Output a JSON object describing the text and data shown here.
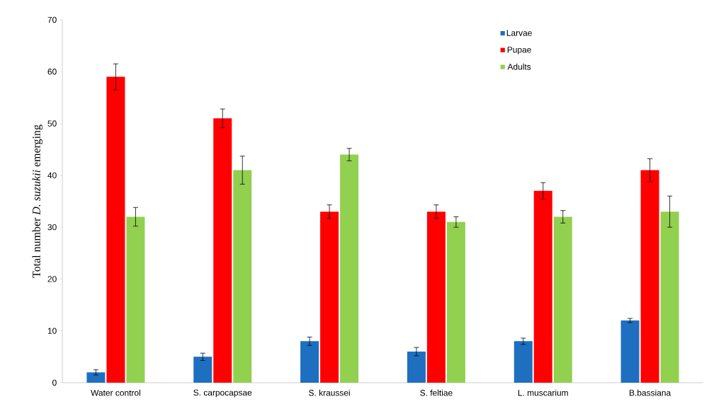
{
  "chart_data": {
    "type": "bar",
    "ylabel": "Total number *D. suzukii* emerging",
    "categories": [
      "Water control",
      "S. carpocapsae",
      "S. kraussei",
      "S. feltiae",
      "L. muscarium",
      "B.bassiana"
    ],
    "series": [
      {
        "name": "Larvae",
        "color": "#1f6fc0",
        "values": [
          2,
          5,
          8,
          6,
          8,
          12
        ],
        "errors": [
          0.5,
          0.7,
          0.8,
          0.8,
          0.6,
          0.4
        ]
      },
      {
        "name": "Pupae",
        "color": "#ff0000",
        "values": [
          59,
          51,
          33,
          33,
          37,
          41
        ],
        "errors": [
          2.5,
          1.8,
          1.3,
          1.3,
          1.6,
          2.2
        ]
      },
      {
        "name": "Adults",
        "color": "#92d050",
        "values": [
          32,
          41,
          44,
          31,
          32,
          33
        ],
        "errors": [
          1.8,
          2.7,
          1.2,
          1.0,
          1.2,
          3.0
        ]
      }
    ],
    "ylim": [
      0,
      70
    ],
    "yticks": [
      0,
      10,
      20,
      30,
      40,
      50,
      60,
      70
    ],
    "legend": "top right",
    "grid": false
  }
}
